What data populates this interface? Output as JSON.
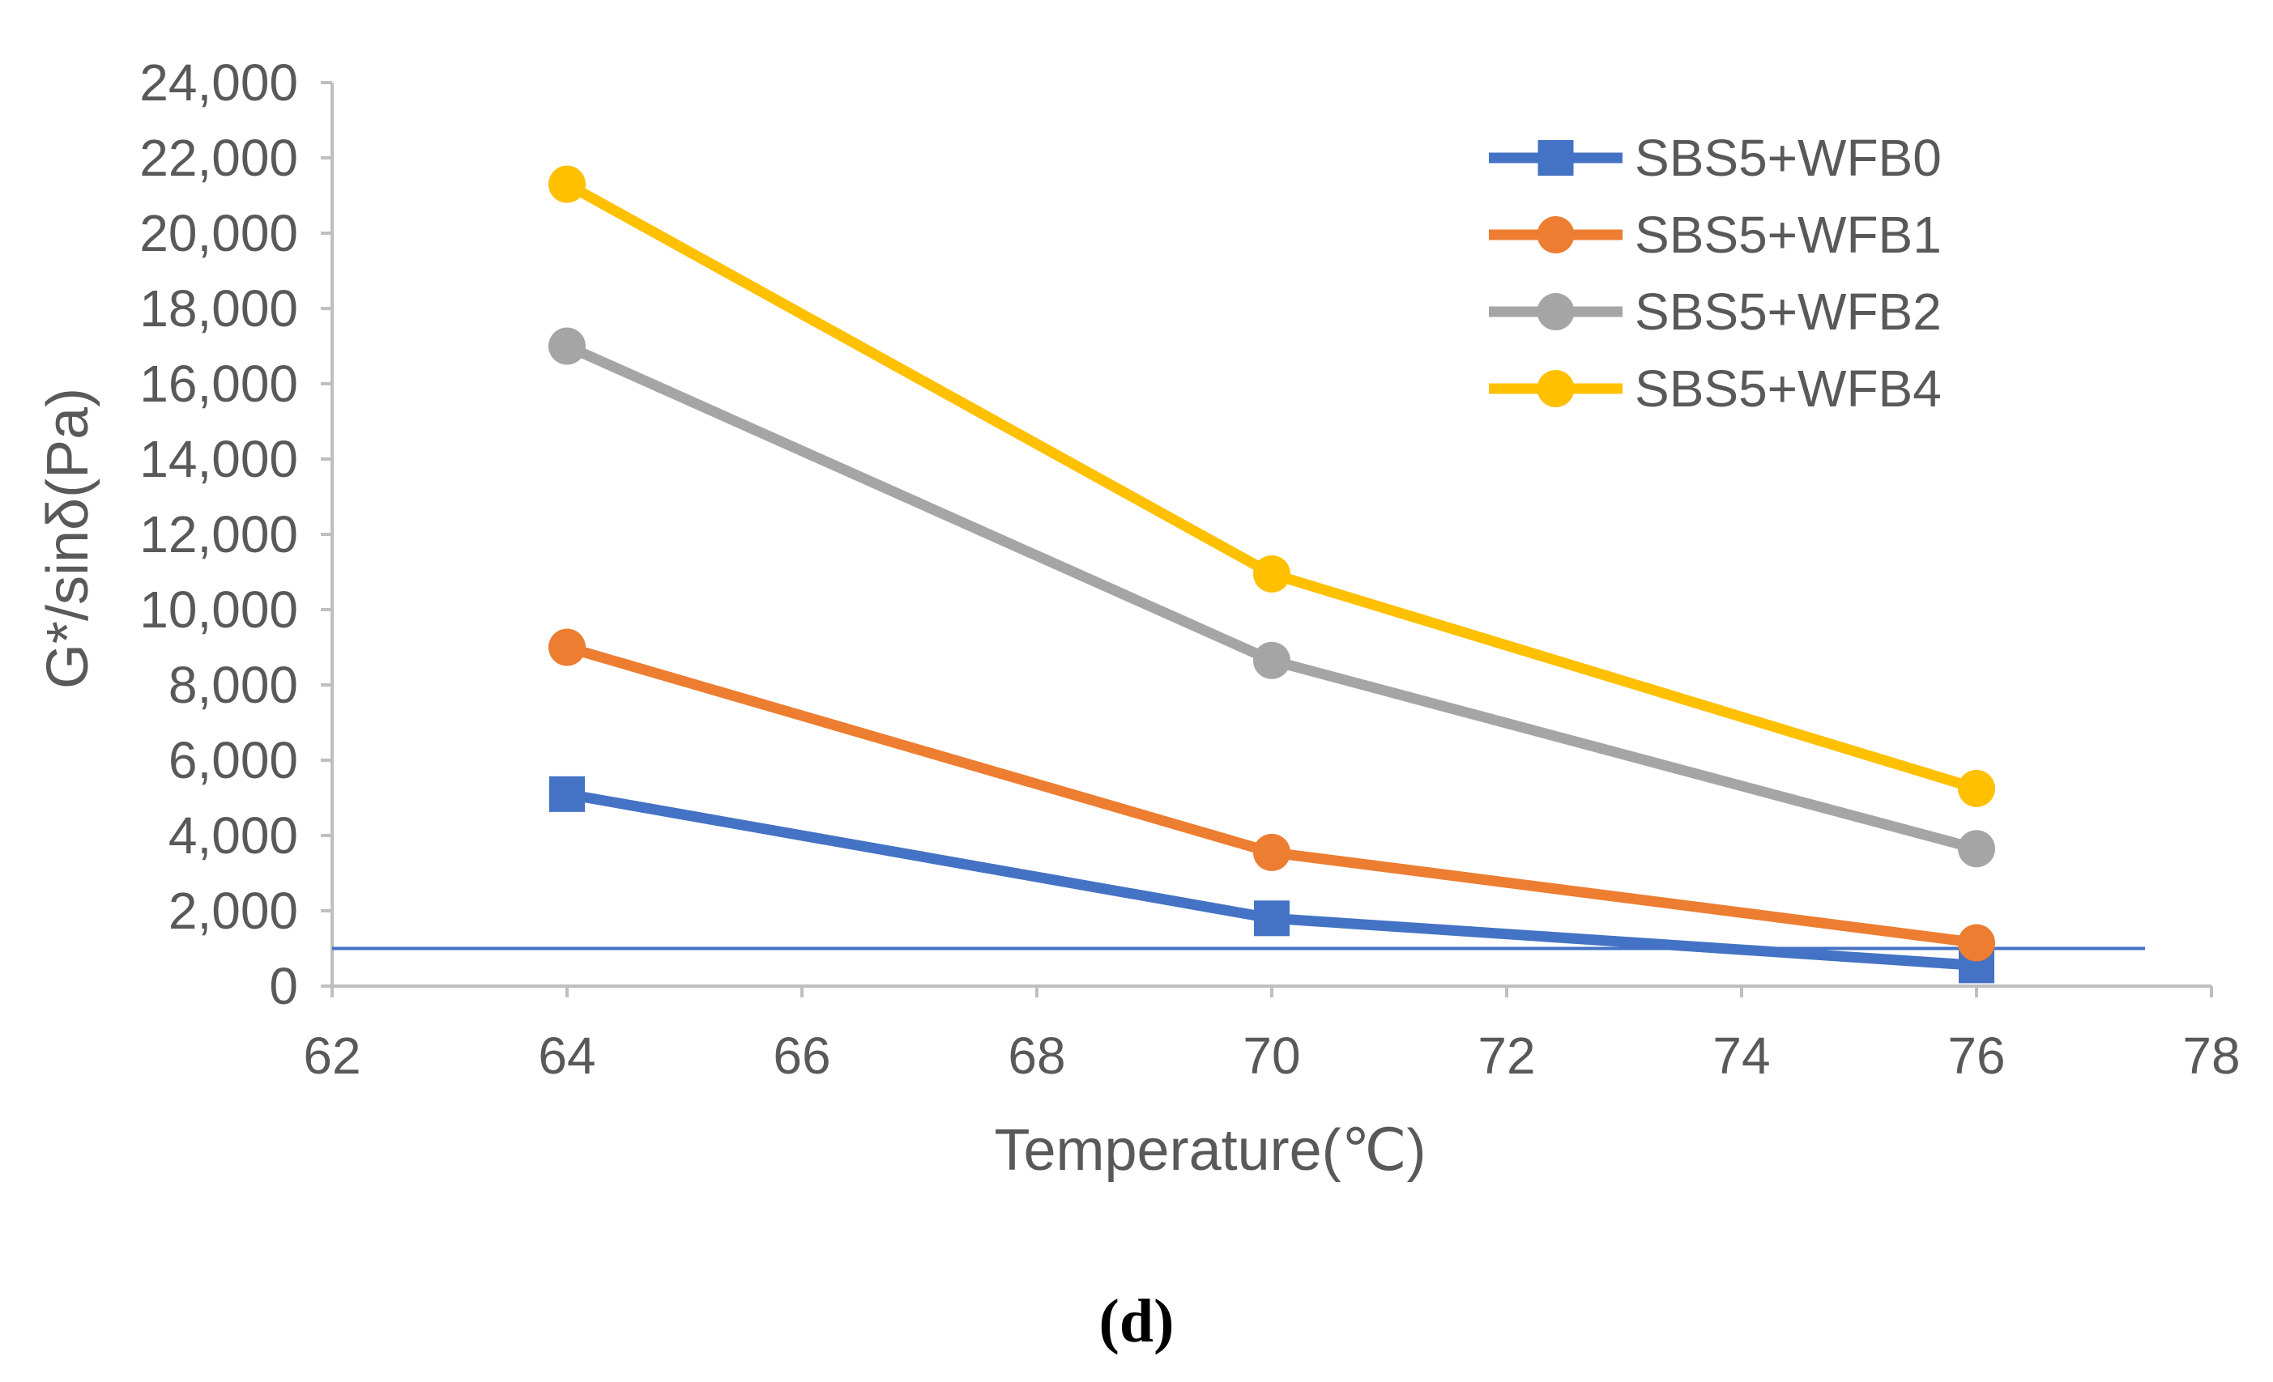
{
  "chart_data": {
    "type": "line",
    "title": "",
    "xlabel": "Temperature(℃)",
    "ylabel": "G*/sinδ(Pa)",
    "panel_label": "(d)",
    "xlim": [
      62,
      78
    ],
    "ylim": [
      0,
      24000
    ],
    "xticks": [
      62,
      64,
      66,
      68,
      70,
      72,
      74,
      76,
      78
    ],
    "yticks": [
      0,
      2000,
      4000,
      6000,
      8000,
      10000,
      12000,
      14000,
      16000,
      18000,
      20000,
      22000,
      24000
    ],
    "xtick_labels": [
      "62",
      "64",
      "66",
      "68",
      "70",
      "72",
      "74",
      "76",
      "78"
    ],
    "ytick_labels": [
      "0",
      "2,000",
      "4,000",
      "6,000",
      "8,000",
      "10,000",
      "12,000",
      "14,000",
      "16,000",
      "18,000",
      "20,000",
      "22,000",
      "24,000"
    ],
    "grid": false,
    "legend_position": "top-right",
    "x": [
      64,
      70,
      76
    ],
    "series": [
      {
        "name": "SBS5+WFB0",
        "marker": "square",
        "color": "#4472C4",
        "values": [
          5100,
          1800,
          550
        ]
      },
      {
        "name": "SBS5+WFB1",
        "marker": "circle",
        "color": "#ED7D31",
        "values": [
          9000,
          3550,
          1150
        ]
      },
      {
        "name": "SBS5+WFB2",
        "marker": "circle",
        "color": "#A5A5A5",
        "values": [
          17000,
          8650,
          3650
        ]
      },
      {
        "name": "SBS5+WFB4",
        "marker": "circle",
        "color": "#FFC000",
        "values": [
          21300,
          10950,
          5250
        ]
      }
    ],
    "reference_line": {
      "y": 1000,
      "color": "#4472C4"
    }
  }
}
